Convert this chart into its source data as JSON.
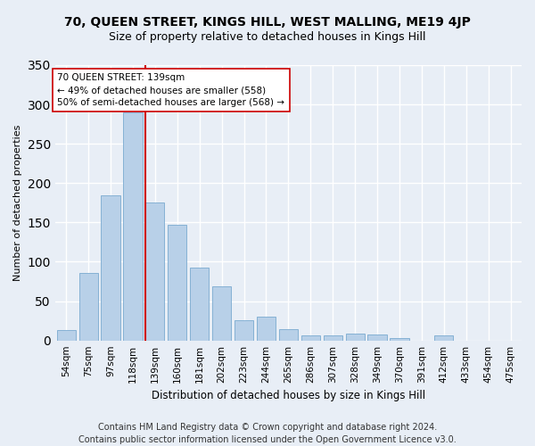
{
  "title": "70, QUEEN STREET, KINGS HILL, WEST MALLING, ME19 4JP",
  "subtitle": "Size of property relative to detached houses in Kings Hill",
  "xlabel": "Distribution of detached houses by size in Kings Hill",
  "ylabel": "Number of detached properties",
  "categories": [
    "54sqm",
    "75sqm",
    "97sqm",
    "118sqm",
    "139sqm",
    "160sqm",
    "181sqm",
    "202sqm",
    "223sqm",
    "244sqm",
    "265sqm",
    "286sqm",
    "307sqm",
    "328sqm",
    "349sqm",
    "370sqm",
    "391sqm",
    "412sqm",
    "433sqm",
    "454sqm",
    "475sqm"
  ],
  "values": [
    13,
    86,
    185,
    290,
    175,
    147,
    93,
    69,
    26,
    30,
    14,
    6,
    7,
    9,
    8,
    3,
    0,
    6,
    0,
    0,
    0
  ],
  "bar_color": "#b8d0e8",
  "bar_edge_color": "#7aaad0",
  "vline_color": "#cc0000",
  "annotation_text": "70 QUEEN STREET: 139sqm\n← 49% of detached houses are smaller (558)\n50% of semi-detached houses are larger (568) →",
  "annotation_box_color": "#ffffff",
  "annotation_box_edge": "#cc0000",
  "ylim": [
    0,
    350
  ],
  "yticks": [
    0,
    50,
    100,
    150,
    200,
    250,
    300,
    350
  ],
  "footer": "Contains HM Land Registry data © Crown copyright and database right 2024.\nContains public sector information licensed under the Open Government Licence v3.0.",
  "bg_color": "#e8eef6",
  "plot_bg_color": "#e8eef6",
  "grid_color": "#ffffff",
  "title_fontsize": 10,
  "subtitle_fontsize": 9,
  "footer_fontsize": 7,
  "tick_labelsize": 7.5,
  "ylabel_fontsize": 8,
  "xlabel_fontsize": 8.5
}
